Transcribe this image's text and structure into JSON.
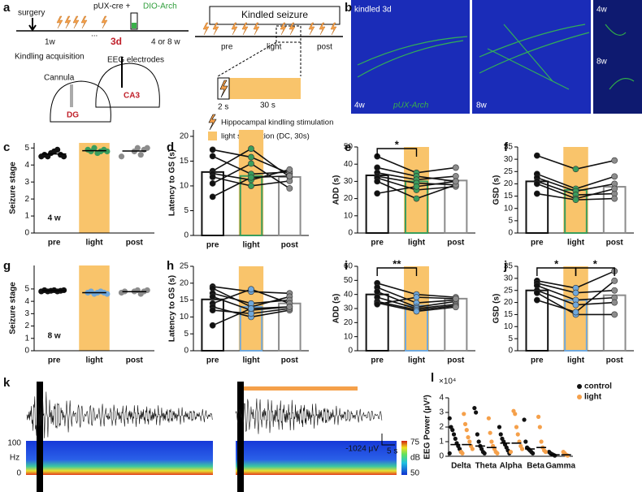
{
  "panel_labels": [
    "a",
    "b",
    "c",
    "d",
    "e",
    "f",
    "g",
    "h",
    "i",
    "j",
    "k",
    "l"
  ],
  "schematic": {
    "surgery": "surgery",
    "virus": "pUX-cre +",
    "virus_2": "DIO-Arch",
    "week": "1w",
    "ellipsis": "...",
    "day": "3d",
    "interval": "4 or 8 w",
    "kindling": "Kindling acquisition",
    "electrodes": "EEG electrodes",
    "cannula": "Cannula",
    "region_1": "DG",
    "region_2": "CA3",
    "seizure_title": "Kindled seizure",
    "phases": [
      "pre",
      "light",
      "post"
    ],
    "pulse": "2 s",
    "light_duration": "30 s",
    "legend": [
      "Hippocampal kindling stimulation",
      "light stimulation (DC, 30s)"
    ]
  },
  "images": {
    "labels": [
      "kindled 3d",
      "4w",
      "8w",
      "pUX-Arch",
      "4w",
      "8w"
    ]
  },
  "eeg": {
    "scale_voltage": "-1024 μV",
    "scale_time": "5 s",
    "freq_axis": [
      "100",
      "Hz",
      "0"
    ],
    "colorbar": [
      "75",
      "dB",
      "50"
    ]
  },
  "chart_data": [
    {
      "type": "strip",
      "ylabel": "Seizure stage",
      "note": "4 w",
      "categories": [
        "pre",
        "light",
        "post"
      ],
      "points": [
        [
          4.5,
          4.6,
          4.5,
          4.7,
          4.8,
          4.9,
          4.6,
          4.5
        ],
        [
          4.9,
          4.8,
          5,
          4.7,
          4.8,
          4.9,
          4.8
        ],
        [
          4.8,
          5,
          4.6,
          4.9,
          5,
          4.5
        ]
      ],
      "values": [
        4.65,
        4.84,
        4.82
      ],
      "ylim": [
        0,
        5.3
      ],
      "yticks": [
        0,
        1,
        2,
        3,
        4,
        5
      ],
      "colors": [
        "#111111",
        "#3a9d5d",
        "#8c8c8c"
      ],
      "band_color": "#f9c46b"
    },
    {
      "type": "bar",
      "ylabel": "Latency to GS (s)",
      "categories": [
        "pre",
        "light",
        "post"
      ],
      "values": [
        12.8,
        12,
        11.8
      ],
      "subjects": [
        [
          17.3,
          15.8,
          12.5
        ],
        [
          16,
          12.4,
          12.8
        ],
        [
          13,
          17.5,
          11.8
        ],
        [
          12.5,
          11.2,
          13.3
        ],
        [
          11.8,
          10,
          11
        ],
        [
          10.5,
          14.5,
          9.5
        ],
        [
          7.8,
          11.7,
          12
        ]
      ],
      "ylim": [
        0,
        21.3
      ],
      "yticks": [
        0,
        5,
        10,
        15,
        20
      ],
      "colors": [
        "#111111",
        "#3a9d5d",
        "#8c8c8c"
      ],
      "band_color": "#f9c46b",
      "significance": []
    },
    {
      "type": "bar",
      "ylabel": "ADD (s)",
      "categories": [
        "pre",
        "light",
        "post"
      ],
      "values": [
        33.5,
        30,
        30.5
      ],
      "subjects": [
        [
          44.5,
          35,
          38
        ],
        [
          38,
          33,
          30
        ],
        [
          35,
          31,
          33
        ],
        [
          33,
          29,
          28
        ],
        [
          32,
          25,
          27
        ],
        [
          30,
          20,
          28
        ],
        [
          23,
          27,
          30
        ]
      ],
      "ylim": [
        0,
        50
      ],
      "yticks": [
        0,
        10,
        20,
        30,
        40,
        50
      ],
      "colors": [
        "#111111",
        "#3a9d5d",
        "#8c8c8c"
      ],
      "band_color": "#f9c46b",
      "significance": [
        {
          "from": 0,
          "to": 1,
          "label": "*"
        }
      ]
    },
    {
      "type": "bar",
      "ylabel": "GSD (s)",
      "categories": [
        "pre",
        "light",
        "post"
      ],
      "values": [
        21,
        17.5,
        18.8
      ],
      "subjects": [
        [
          31.5,
          26,
          29.5
        ],
        [
          24,
          18,
          23
        ],
        [
          22.5,
          17,
          20
        ],
        [
          21,
          15.5,
          16
        ],
        [
          20,
          14,
          18
        ],
        [
          16,
          13.5,
          14
        ]
      ],
      "ylim": [
        0,
        35
      ],
      "yticks": [
        0,
        5,
        10,
        15,
        20,
        25,
        30,
        35
      ],
      "colors": [
        "#111111",
        "#3a9d5d",
        "#8c8c8c"
      ],
      "band_color": "#f9c46b",
      "significance": []
    },
    {
      "type": "strip",
      "ylabel": "Seizure stage",
      "note": "8 w",
      "categories": [
        "pre",
        "light",
        "post"
      ],
      "points": [
        [
          4.8,
          4.9,
          4.8,
          4.85,
          4.9,
          4.8,
          4.85,
          4.9
        ],
        [
          4.7,
          4.8,
          4.6,
          4.7,
          4.8,
          4.7,
          4.6
        ],
        [
          4.8,
          4.9,
          4.6,
          4.8,
          4.9,
          4.7,
          4.8
        ]
      ],
      "values": [
        4.85,
        4.7,
        4.78
      ],
      "ylim": [
        0,
        6.9
      ],
      "yticks": [
        0,
        1,
        2,
        3,
        4,
        5
      ],
      "colors": [
        "#111111",
        "#6fa8dc",
        "#8c8c8c"
      ],
      "band_color": "#f9c46b"
    },
    {
      "type": "bar",
      "ylabel": "Latency to GS (s)",
      "categories": [
        "pre",
        "light",
        "post"
      ],
      "values": [
        15.2,
        13,
        14
      ],
      "subjects": [
        [
          19,
          17.5,
          17
        ],
        [
          18.5,
          13,
          16
        ],
        [
          17,
          14,
          15
        ],
        [
          16,
          12,
          13
        ],
        [
          14,
          18.2,
          14
        ],
        [
          13,
          10,
          12
        ],
        [
          12,
          11,
          12.5
        ],
        [
          7.5,
          12.5,
          13
        ]
      ],
      "ylim": [
        0,
        25
      ],
      "yticks": [
        0,
        5,
        10,
        15,
        20,
        25
      ],
      "colors": [
        "#111111",
        "#6fa8dc",
        "#8c8c8c"
      ],
      "band_color": "#f9c46b",
      "significance": []
    },
    {
      "type": "bar",
      "ylabel": "ADD (s)",
      "categories": [
        "pre",
        "light",
        "post"
      ],
      "values": [
        40,
        32,
        37
      ],
      "subjects": [
        [
          48,
          40,
          38
        ],
        [
          45,
          34,
          36
        ],
        [
          42,
          31,
          35
        ],
        [
          38,
          30,
          33
        ],
        [
          35,
          29,
          32
        ],
        [
          34,
          28,
          31
        ],
        [
          33,
          38,
          37
        ]
      ],
      "ylim": [
        0,
        60
      ],
      "yticks": [
        0,
        10,
        20,
        30,
        40,
        50,
        60
      ],
      "colors": [
        "#111111",
        "#6fa8dc",
        "#8c8c8c"
      ],
      "band_color": "#f9c46b",
      "significance": [
        {
          "from": 0,
          "to": 1,
          "label": "**"
        }
      ]
    },
    {
      "type": "bar",
      "ylabel": "GSD (s)",
      "categories": [
        "pre",
        "light",
        "post"
      ],
      "values": [
        25,
        21,
        23
      ],
      "subjects": [
        [
          29,
          26,
          33
        ],
        [
          28,
          24,
          25
        ],
        [
          27,
          21,
          22
        ],
        [
          25,
          19,
          20
        ],
        [
          24,
          15,
          15
        ],
        [
          21,
          16,
          29
        ]
      ],
      "ylim": [
        0,
        35
      ],
      "yticks": [
        0,
        5,
        10,
        15,
        20,
        25,
        30,
        35
      ],
      "colors": [
        "#111111",
        "#6fa8dc",
        "#8c8c8c"
      ],
      "band_color": "#f9c46b",
      "significance": [
        {
          "from": 0,
          "to": 1,
          "label": "*"
        },
        {
          "from": 1,
          "to": 2,
          "label": "*"
        }
      ]
    },
    {
      "type": "scatter",
      "ylabel": "EEG Power (μV²)",
      "y_multiplier": "×10⁴",
      "categories": [
        "Delta",
        "Theta",
        "Alpha",
        "Beta",
        "Gamma"
      ],
      "ylim": [
        0,
        4
      ],
      "yticks": [
        0,
        1,
        2,
        3,
        4
      ],
      "series": [
        {
          "name": "control",
          "color": "#111111",
          "values": [
            [
              2.6,
              2.0,
              1.8,
              1.5,
              1.2,
              0.9,
              0.7,
              0.5,
              0.3,
              0.2
            ],
            [
              3.3,
              3.0,
              1.5,
              1.0,
              0.7,
              0.5,
              0.3,
              0.2
            ],
            [
              2.0,
              1.5,
              1.2,
              1.0,
              0.8,
              0.6,
              0.4,
              0.2
            ],
            [
              2.5,
              1.0,
              0.6,
              0.5,
              0.4,
              0.3,
              0.2
            ],
            [
              0.3,
              0.2,
              0.15,
              0.1,
              0.05
            ]
          ],
          "means": [
            0.8,
            0.7,
            0.9,
            0.5,
            0.1
          ]
        },
        {
          "name": "light",
          "color": "#f5a04a",
          "values": [
            [
              2.9,
              2.2,
              1.8,
              1.3,
              1.0,
              0.7,
              0.5,
              0.3,
              0.2
            ],
            [
              2.6,
              1.6,
              1.0,
              0.7,
              0.5,
              0.3,
              0.2
            ],
            [
              3.1,
              2.9,
              2.0,
              1.5,
              1.0,
              0.7,
              0.5,
              0.3
            ],
            [
              2.7,
              2.0,
              1.0,
              0.6,
              0.4,
              0.3
            ],
            [
              0.3,
              0.2,
              0.1,
              0.05
            ]
          ],
          "means": [
            0.8,
            0.6,
            0.9,
            0.6,
            0.1
          ]
        }
      ]
    }
  ]
}
